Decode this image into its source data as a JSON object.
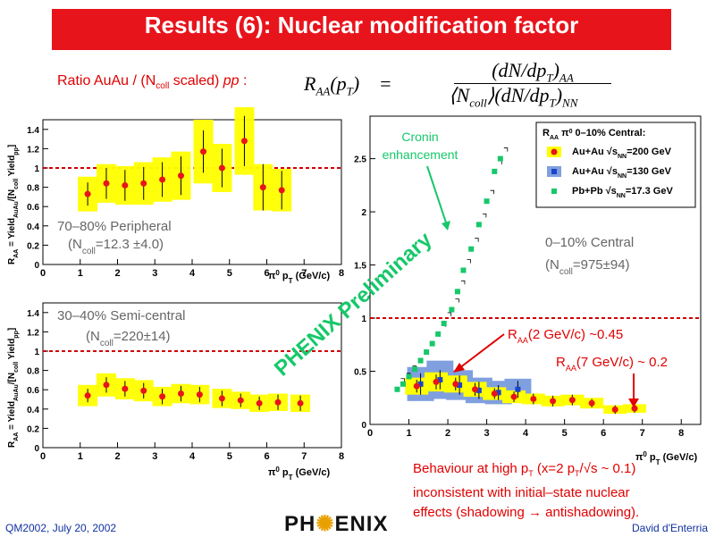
{
  "slide": {
    "title": "Results (6): Nuclear modification factor",
    "ratio_label": "Ratio AuAu / (N",
    "ratio_label_sub": "coll",
    "ratio_label_end": " scaled) ",
    "ratio_label_pp": "pp",
    "ratio_label_colon": " :",
    "formula_lhs": "R",
    "formula_lhs_sub": "AA",
    "formula_lhs_arg": "(p",
    "formula_lhs_arg_sub": "T",
    "formula_lhs_arg_close": ")",
    "formula_eq": "=",
    "formula_num": "(dN/dp",
    "formula_num_sub": "T",
    "formula_num_close": ")",
    "formula_num_end_sub": "AA",
    "formula_den_open": "⟨N",
    "formula_den_sub": "coll",
    "formula_den_mid": "⟩(dN/dp",
    "formula_den_sub2": "T",
    "formula_den_close": ")",
    "formula_den_end_sub": "NN",
    "footer_left": "QM2002, July 20, 2002",
    "footer_right": "David d'Enterria",
    "logo_text": "PH",
    "logo_text_end": "ENIX",
    "watermark": "PHENIX Preliminary",
    "behaviour_line1": "Behaviour at high p",
    "behaviour_line1_sub": "T",
    "behaviour_line1_end": " (x=2 p",
    "behaviour_line1_sub2": "T",
    "behaviour_line1_end2": "/√s ~ 0.1)",
    "behaviour_line2": "inconsistent with initial–state nuclear",
    "behaviour_line3": "effects (shadowing → antishadowing).",
    "raa_note1": "R",
    "raa_note1_sub": "AA",
    "raa_note1_end": "(2 GeV/c) ~0.45",
    "raa_note2": "R",
    "raa_note2_sub": "AA",
    "raa_note2_end": "(7 GeV/c) ~ 0.2",
    "cronin1": "Cronin",
    "cronin2": "enhancement",
    "colors": {
      "title_bg": "#e8141c",
      "points": "#e8141c",
      "band": "#ffff00",
      "blue_band": "#7f9fdf",
      "green": "#16c86a",
      "dashed": "#d00000"
    }
  },
  "chart_data": [
    {
      "type": "scatter",
      "name": "peripheral",
      "label1": "70–80% Peripheral",
      "label2": "(N",
      "label2_sub": "coll",
      "label2_end": "=12.3 ±4.0)",
      "ylabel": "R",
      "ylabel_sub": "AA",
      "ylabel_rest": " = Yield",
      "ylabel_sub2": "AuAu",
      "ylabel_rest2": "/[N",
      "ylabel_sub3": "coll",
      "ylabel_rest3": " Yield",
      "ylabel_sub4": "pp",
      "ylabel_rest4": "]",
      "xlabel": "π",
      "xlabel_sup": "0",
      "xlabel_rest": " p",
      "xlabel_sub": "T",
      "xlabel_unit": " (GeV/c)",
      "xlim": [
        0,
        8
      ],
      "ylim": [
        0,
        1.5
      ],
      "xticks": [
        0,
        1,
        2,
        3,
        4,
        5,
        6,
        7,
        8
      ],
      "yticks": [
        0,
        0.2,
        0.4,
        0.6,
        0.8,
        1,
        1.2,
        1.4
      ],
      "reference_line": 1.0,
      "points": [
        {
          "x": 1.2,
          "y": 0.73,
          "err": 0.12,
          "band": 0.18
        },
        {
          "x": 1.7,
          "y": 0.84,
          "err": 0.16,
          "band": 0.2
        },
        {
          "x": 2.2,
          "y": 0.82,
          "err": 0.16,
          "band": 0.2
        },
        {
          "x": 2.7,
          "y": 0.84,
          "err": 0.17,
          "band": 0.22
        },
        {
          "x": 3.2,
          "y": 0.88,
          "err": 0.18,
          "band": 0.23
        },
        {
          "x": 3.7,
          "y": 0.92,
          "err": 0.2,
          "band": 0.25
        },
        {
          "x": 4.3,
          "y": 1.17,
          "err": 0.22,
          "band": 0.33
        },
        {
          "x": 4.8,
          "y": 1.0,
          "err": 0.2,
          "band": 0.25
        },
        {
          "x": 5.4,
          "y": 1.28,
          "err": 0.26,
          "band": 0.35
        },
        {
          "x": 5.9,
          "y": 0.8,
          "err": 0.24,
          "band": 0.24
        },
        {
          "x": 6.4,
          "y": 0.77,
          "err": 0.2,
          "band": 0.22
        }
      ]
    },
    {
      "type": "scatter",
      "name": "semi-central",
      "label1": "30–40% Semi-central",
      "label2": "(N",
      "label2_sub": "coll",
      "label2_end": "=220±14)",
      "ylabel": "R",
      "ylabel_sub": "AA",
      "ylabel_rest": " = Yield",
      "ylabel_sub2": "AuAu",
      "ylabel_rest2": "/[N",
      "ylabel_sub3": "coll",
      "ylabel_rest3": " Yield",
      "ylabel_sub4": "pp",
      "ylabel_rest4": "]",
      "xlabel": "π",
      "xlabel_sup": "0",
      "xlabel_rest": " p",
      "xlabel_sub": "T",
      "xlabel_unit": " (GeV/c)",
      "xlim": [
        0,
        8
      ],
      "ylim": [
        0,
        1.5
      ],
      "xticks": [
        0,
        1,
        2,
        3,
        4,
        5,
        6,
        7,
        8
      ],
      "yticks": [
        0,
        0.2,
        0.4,
        0.6,
        0.8,
        1,
        1.2,
        1.4
      ],
      "reference_line": 1.0,
      "points": [
        {
          "x": 1.2,
          "y": 0.54,
          "err": 0.07,
          "band": 0.11
        },
        {
          "x": 1.7,
          "y": 0.65,
          "err": 0.08,
          "band": 0.12
        },
        {
          "x": 2.2,
          "y": 0.61,
          "err": 0.08,
          "band": 0.11
        },
        {
          "x": 2.7,
          "y": 0.59,
          "err": 0.08,
          "band": 0.11
        },
        {
          "x": 3.2,
          "y": 0.53,
          "err": 0.08,
          "band": 0.1
        },
        {
          "x": 3.7,
          "y": 0.56,
          "err": 0.08,
          "band": 0.1
        },
        {
          "x": 4.2,
          "y": 0.55,
          "err": 0.08,
          "band": 0.1
        },
        {
          "x": 4.8,
          "y": 0.51,
          "err": 0.08,
          "band": 0.1
        },
        {
          "x": 5.3,
          "y": 0.49,
          "err": 0.07,
          "band": 0.09
        },
        {
          "x": 5.8,
          "y": 0.46,
          "err": 0.07,
          "band": 0.09
        },
        {
          "x": 6.3,
          "y": 0.47,
          "err": 0.08,
          "band": 0.09
        },
        {
          "x": 6.9,
          "y": 0.46,
          "err": 0.08,
          "band": 0.09
        }
      ]
    },
    {
      "type": "scatter",
      "name": "central",
      "label1": "0–10% Central",
      "label2": "(N",
      "label2_sub": "coll",
      "label2_end": "=975±94)",
      "xlabel": "π",
      "xlabel_sup": "0",
      "xlabel_rest": " p",
      "xlabel_sub": "T",
      "xlabel_unit": " (GeV/c)",
      "xlim": [
        0,
        8.5
      ],
      "ylim": [
        0,
        2.9
      ],
      "xticks": [
        0,
        1,
        2,
        3,
        4,
        5,
        6,
        7,
        8
      ],
      "yticks": [
        0,
        0.5,
        1,
        1.5,
        2,
        2.5
      ],
      "reference_line": 1.0,
      "legend_title": "R",
      "legend_title_sub": "AA",
      "legend_title_rest": " π",
      "legend_title_sup": "0",
      "legend_title_end": " 0–10% Central:",
      "legend_position": "top-right",
      "legend": [
        {
          "pre": "Au+Au √s",
          "sub": "NN",
          "post": "=200 GeV",
          "color": "#e8141c",
          "bg": "#ffff00"
        },
        {
          "pre": "Au+Au √s",
          "sub": "NN",
          "post": "=130 GeV",
          "color": "#1a44c8",
          "bg": "#7f9fdf"
        },
        {
          "pre": "Pb+Pb √s",
          "sub": "NN",
          "post": "=17.3 GeV",
          "color": "#16c86a",
          "bg": "none"
        }
      ],
      "series": [
        {
          "name": "Au+Au √sNN=200 GeV",
          "points": [
            {
              "x": 1.2,
              "y": 0.36,
              "err": 0.06,
              "band": 0.08
            },
            {
              "x": 1.7,
              "y": 0.4,
              "err": 0.07,
              "band": 0.09
            },
            {
              "x": 2.2,
              "y": 0.38,
              "err": 0.06,
              "band": 0.08
            },
            {
              "x": 2.7,
              "y": 0.33,
              "err": 0.06,
              "band": 0.07
            },
            {
              "x": 3.2,
              "y": 0.29,
              "err": 0.05,
              "band": 0.06
            },
            {
              "x": 3.7,
              "y": 0.26,
              "err": 0.05,
              "band": 0.06
            },
            {
              "x": 4.2,
              "y": 0.24,
              "err": 0.05,
              "band": 0.05
            },
            {
              "x": 4.7,
              "y": 0.22,
              "err": 0.05,
              "band": 0.05
            },
            {
              "x": 5.2,
              "y": 0.23,
              "err": 0.05,
              "band": 0.05
            },
            {
              "x": 5.7,
              "y": 0.2,
              "err": 0.04,
              "band": 0.05
            },
            {
              "x": 6.3,
              "y": 0.14,
              "err": 0.04,
              "band": 0.04
            },
            {
              "x": 6.8,
              "y": 0.15,
              "err": 0.04,
              "band": 0.04
            }
          ]
        },
        {
          "name": "Au+Au √sNN=130 GeV",
          "points": [
            {
              "x": 1.3,
              "y": 0.38,
              "err": 0.1,
              "band": 0.16
            },
            {
              "x": 1.8,
              "y": 0.42,
              "err": 0.09,
              "band": 0.18
            },
            {
              "x": 2.3,
              "y": 0.37,
              "err": 0.09,
              "band": 0.14
            },
            {
              "x": 2.8,
              "y": 0.32,
              "err": 0.08,
              "band": 0.12
            },
            {
              "x": 3.3,
              "y": 0.3,
              "err": 0.07,
              "band": 0.11
            },
            {
              "x": 3.8,
              "y": 0.33,
              "err": 0.08,
              "band": 0.1
            }
          ]
        },
        {
          "name": "Pb+Pb √sNN=17.3 GeV",
          "points": [
            {
              "x": 0.7,
              "y": 0.33
            },
            {
              "x": 0.85,
              "y": 0.38
            },
            {
              "x": 1.0,
              "y": 0.45
            },
            {
              "x": 1.15,
              "y": 0.52
            },
            {
              "x": 1.3,
              "y": 0.6
            },
            {
              "x": 1.45,
              "y": 0.68
            },
            {
              "x": 1.6,
              "y": 0.76
            },
            {
              "x": 1.75,
              "y": 0.85
            },
            {
              "x": 1.9,
              "y": 0.95
            },
            {
              "x": 2.1,
              "y": 1.08
            },
            {
              "x": 2.25,
              "y": 1.25
            },
            {
              "x": 2.4,
              "y": 1.45
            },
            {
              "x": 2.6,
              "y": 1.65
            },
            {
              "x": 2.8,
              "y": 1.88
            },
            {
              "x": 3.0,
              "y": 2.1
            },
            {
              "x": 3.2,
              "y": 2.38
            },
            {
              "x": 3.35,
              "y": 2.5
            }
          ]
        }
      ]
    }
  ]
}
